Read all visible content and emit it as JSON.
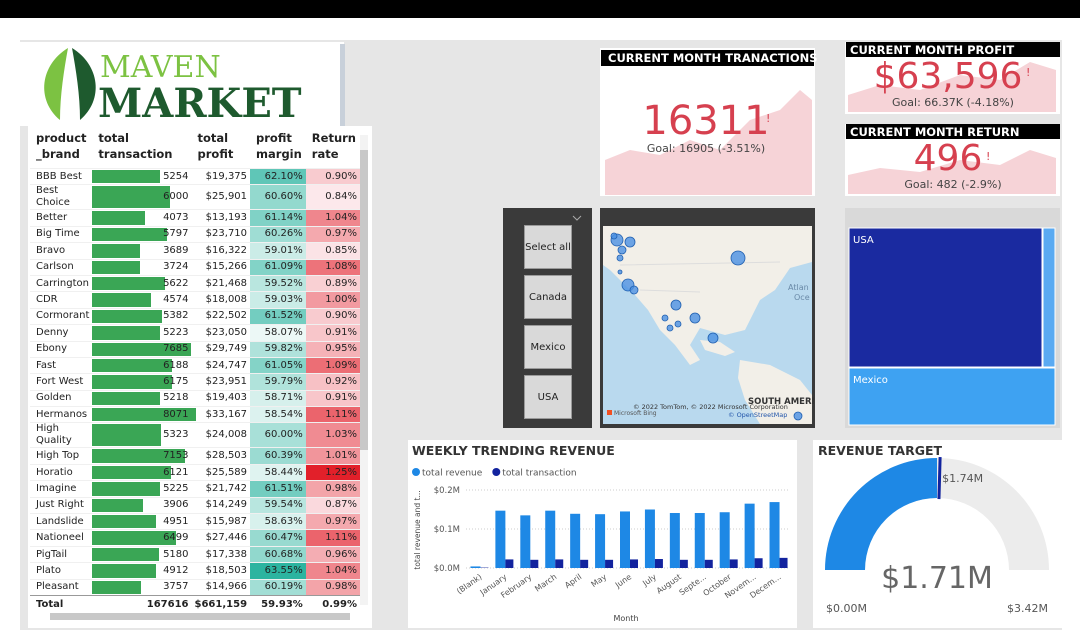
{
  "logo": {
    "line1": "MAVEN",
    "line2": "MARKET"
  },
  "table": {
    "headers": [
      "product _brand",
      "total transaction",
      "total profit",
      "profit margin",
      "Return rate"
    ],
    "rows": [
      [
        "BBB Best",
        5254,
        "$19,375",
        "62.10%",
        "0.90%"
      ],
      [
        "Best Choice",
        6000,
        "$25,901",
        "60.60%",
        "0.84%"
      ],
      [
        "Better",
        4073,
        "$13,193",
        "61.14%",
        "1.04%"
      ],
      [
        "Big Time",
        5797,
        "$23,710",
        "60.26%",
        "0.97%"
      ],
      [
        "Bravo",
        3689,
        "$16,322",
        "59.01%",
        "0.85%"
      ],
      [
        "Carlson",
        3724,
        "$15,266",
        "61.09%",
        "1.08%"
      ],
      [
        "Carrington",
        5622,
        "$21,468",
        "59.52%",
        "0.89%"
      ],
      [
        "CDR",
        4574,
        "$18,008",
        "59.03%",
        "1.00%"
      ],
      [
        "Cormorant",
        5382,
        "$22,502",
        "61.52%",
        "0.90%"
      ],
      [
        "Denny",
        5223,
        "$23,050",
        "58.07%",
        "0.91%"
      ],
      [
        "Ebony",
        7685,
        "$29,749",
        "59.82%",
        "0.95%"
      ],
      [
        "Fast",
        6188,
        "$24,747",
        "61.05%",
        "1.09%"
      ],
      [
        "Fort West",
        6175,
        "$23,951",
        "59.79%",
        "0.92%"
      ],
      [
        "Golden",
        5218,
        "$19,403",
        "58.71%",
        "0.91%"
      ],
      [
        "Hermanos",
        8071,
        "$33,167",
        "58.54%",
        "1.11%"
      ],
      [
        "High Quality",
        5323,
        "$24,008",
        "60.00%",
        "1.03%"
      ],
      [
        "High Top",
        7153,
        "$28,503",
        "60.39%",
        "1.01%"
      ],
      [
        "Horatio",
        6121,
        "$25,589",
        "58.44%",
        "1.25%"
      ],
      [
        "Imagine",
        5225,
        "$21,742",
        "61.51%",
        "0.98%"
      ],
      [
        "Just Right",
        3906,
        "$14,249",
        "59.54%",
        "0.87%"
      ],
      [
        "Landslide",
        4951,
        "$15,987",
        "58.63%",
        "0.97%"
      ],
      [
        "Nationeel",
        6499,
        "$27,446",
        "60.47%",
        "1.11%"
      ],
      [
        "PigTail",
        5180,
        "$17,338",
        "60.68%",
        "0.96%"
      ],
      [
        "Plato",
        4912,
        "$18,503",
        "63.55%",
        "1.04%"
      ],
      [
        "Pleasant",
        3757,
        "$14,966",
        "60.19%",
        "0.98%"
      ]
    ],
    "total": [
      "Total",
      167616,
      "$661,159",
      "59.93%",
      "0.99%"
    ]
  },
  "kpis": [
    {
      "title": "CURRENT MONTH TRANACTIONS",
      "value": "16311",
      "goal": "Goal: 16905 (-3.51%)"
    },
    {
      "title": "CURRENT MONTH PROFIT",
      "value": "$63,596",
      "goal": "Goal: 66.37K (-4.18%)"
    },
    {
      "title": "CURRENT MONTH RETURN",
      "value": "496",
      "goal": "Goal: 482 (-2.9%)"
    }
  ],
  "slicer": {
    "options": [
      "Select all",
      "Canada",
      "Mexico",
      "USA"
    ]
  },
  "map": {
    "ocean": "Atlan",
    "ocean2": "Oce",
    "continent": "SOUTH AMERI",
    "credit": "© 2022 TomTom, © 2022 Microsoft Corporation",
    "osm": "© OpenStreetMap",
    "bing": "Microsoft Bing"
  },
  "treemap": {
    "labels": [
      "USA",
      "Mexico"
    ]
  },
  "chart_data": {
    "type": "bar",
    "title": "WEEKLY TRENDING REVENUE",
    "x_label": "Month",
    "y_label": "total revenue and t...",
    "categories": [
      "(Blank)",
      "January",
      "February",
      "March",
      "April",
      "May",
      "June",
      "July",
      "August",
      "Septe...",
      "October",
      "Novem...",
      "Decem..."
    ],
    "series": [
      {
        "name": "total revenue",
        "color": "#1e88e5",
        "values": [
          0.004,
          0.147,
          0.135,
          0.147,
          0.139,
          0.138,
          0.145,
          0.15,
          0.141,
          0.141,
          0.143,
          0.165,
          0.169
        ]
      },
      {
        "name": "total transaction",
        "color": "#12239e",
        "values": [
          0.001,
          0.022,
          0.021,
          0.022,
          0.021,
          0.021,
          0.022,
          0.023,
          0.021,
          0.021,
          0.022,
          0.025,
          0.026
        ]
      }
    ],
    "ylim": [
      0,
      0.2
    ],
    "yticks": [
      {
        "value": 0,
        "label": "$0.0M"
      },
      {
        "value": 0.1,
        "label": "$0.1M"
      },
      {
        "value": 0.2,
        "label": "$0.2M"
      }
    ],
    "grid": true
  },
  "gauge": {
    "title": "REVENUE TARGET",
    "value": 1.71,
    "value_label": "$1.71M",
    "target": 1.74,
    "target_label": "$1.74M",
    "min": 0,
    "min_label": "$0.00M",
    "max": 3.42,
    "max_label": "$3.42M"
  }
}
